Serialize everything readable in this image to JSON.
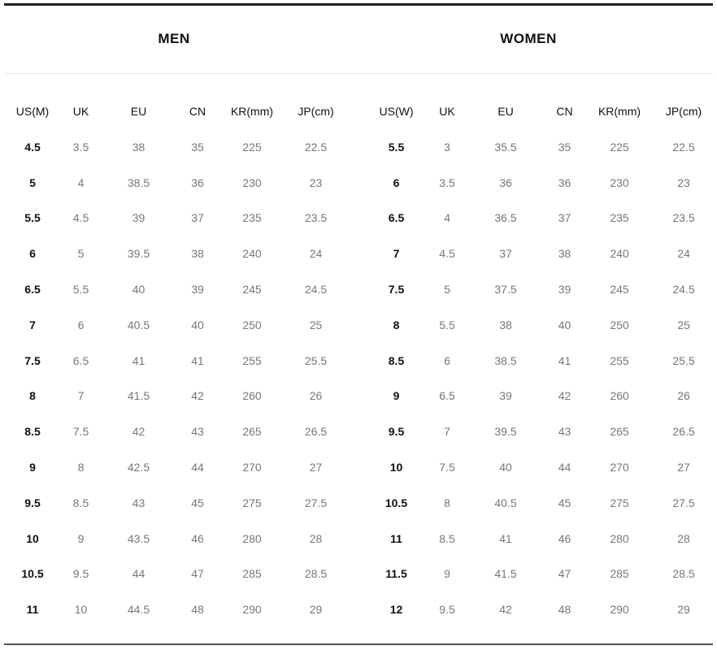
{
  "men": {
    "title": "MEN",
    "headers": [
      "US(M)",
      "UK",
      "EU",
      "CN",
      "KR(mm)",
      "JP(cm)"
    ],
    "rows": [
      [
        "4.5",
        "3.5",
        "38",
        "35",
        "225",
        "22.5"
      ],
      [
        "5",
        "4",
        "38.5",
        "36",
        "230",
        "23"
      ],
      [
        "5.5",
        "4.5",
        "39",
        "37",
        "235",
        "23.5"
      ],
      [
        "6",
        "5",
        "39.5",
        "38",
        "240",
        "24"
      ],
      [
        "6.5",
        "5.5",
        "40",
        "39",
        "245",
        "24.5"
      ],
      [
        "7",
        "6",
        "40.5",
        "40",
        "250",
        "25"
      ],
      [
        "7.5",
        "6.5",
        "41",
        "41",
        "255",
        "25.5"
      ],
      [
        "8",
        "7",
        "41.5",
        "42",
        "260",
        "26"
      ],
      [
        "8.5",
        "7.5",
        "42",
        "43",
        "265",
        "26.5"
      ],
      [
        "9",
        "8",
        "42.5",
        "44",
        "270",
        "27"
      ],
      [
        "9.5",
        "8.5",
        "43",
        "45",
        "275",
        "27.5"
      ],
      [
        "10",
        "9",
        "43.5",
        "46",
        "280",
        "28"
      ],
      [
        "10.5",
        "9.5",
        "44",
        "47",
        "285",
        "28.5"
      ],
      [
        "11",
        "10",
        "44.5",
        "48",
        "290",
        "29"
      ]
    ]
  },
  "women": {
    "title": "WOMEN",
    "headers": [
      "US(W)",
      "UK",
      "EU",
      "CN",
      "KR(mm)",
      "JP(cm)"
    ],
    "rows": [
      [
        "5.5",
        "3",
        "35.5",
        "35",
        "225",
        "22.5"
      ],
      [
        "6",
        "3.5",
        "36",
        "36",
        "230",
        "23"
      ],
      [
        "6.5",
        "4",
        "36.5",
        "37",
        "235",
        "23.5"
      ],
      [
        "7",
        "4.5",
        "37",
        "38",
        "240",
        "24"
      ],
      [
        "7.5",
        "5",
        "37.5",
        "39",
        "245",
        "24.5"
      ],
      [
        "8",
        "5.5",
        "38",
        "40",
        "250",
        "25"
      ],
      [
        "8.5",
        "6",
        "38.5",
        "41",
        "255",
        "25.5"
      ],
      [
        "9",
        "6.5",
        "39",
        "42",
        "260",
        "26"
      ],
      [
        "9.5",
        "7",
        "39.5",
        "43",
        "265",
        "26.5"
      ],
      [
        "10",
        "7.5",
        "40",
        "44",
        "270",
        "27"
      ],
      [
        "10.5",
        "8",
        "40.5",
        "45",
        "275",
        "27.5"
      ],
      [
        "11",
        "8.5",
        "41",
        "46",
        "280",
        "28"
      ],
      [
        "11.5",
        "9",
        "41.5",
        "47",
        "285",
        "28.5"
      ],
      [
        "12",
        "9.5",
        "42",
        "48",
        "290",
        "29"
      ]
    ]
  }
}
